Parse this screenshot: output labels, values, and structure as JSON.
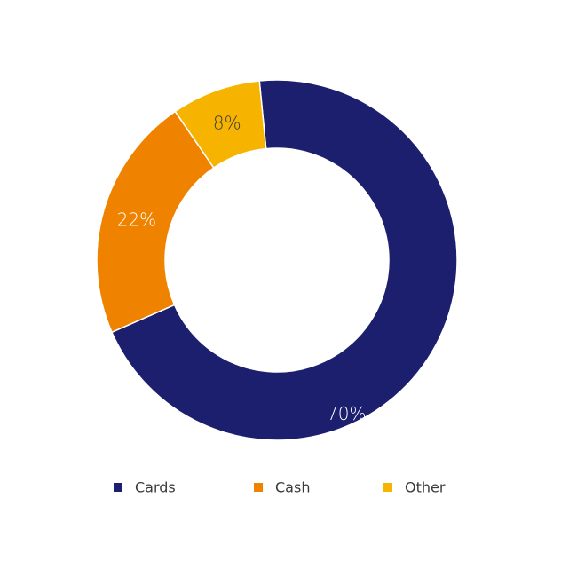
{
  "chart_data": {
    "type": "pie",
    "donut": true,
    "categories": [
      "Cards",
      "Cash",
      "Other"
    ],
    "values": [
      70,
      22,
      8
    ],
    "labels": [
      "70%",
      "22%",
      "8%"
    ],
    "colors": [
      "#1b1f6e",
      "#ef8300",
      "#f6b400"
    ],
    "label_colors": [
      "#ffffff",
      "#ffffff",
      "#3a3a3a"
    ],
    "legend": "bottom"
  }
}
